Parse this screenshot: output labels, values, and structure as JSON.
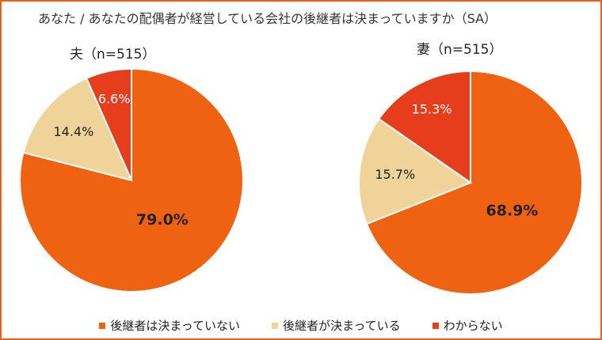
{
  "chart_data": [
    {
      "type": "pie",
      "title": "夫（n=515）",
      "categories": [
        "後継者は決まっていない",
        "後継者が決まっている",
        "わからない"
      ],
      "values": [
        79.0,
        14.4,
        6.6
      ],
      "labels": [
        "79.0%",
        "14.4%",
        "6.6%"
      ]
    },
    {
      "type": "pie",
      "title": "妻（n=515）",
      "categories": [
        "後継者は決まっていない",
        "後継者が決まっている",
        "わからない"
      ],
      "values": [
        68.9,
        15.7,
        15.3
      ],
      "labels": [
        "68.9%",
        "15.7%",
        "15.3%"
      ]
    }
  ],
  "title": "あなた / あなたの配偶者が経営している会社の後継者は決まっていますか（SA）",
  "legend": [
    {
      "label": "後継者は決まっていない",
      "color": "#EE6212"
    },
    {
      "label": "後継者が決まっている",
      "color": "#F0D398"
    },
    {
      "label": "わからない",
      "color": "#E63E1C"
    }
  ]
}
